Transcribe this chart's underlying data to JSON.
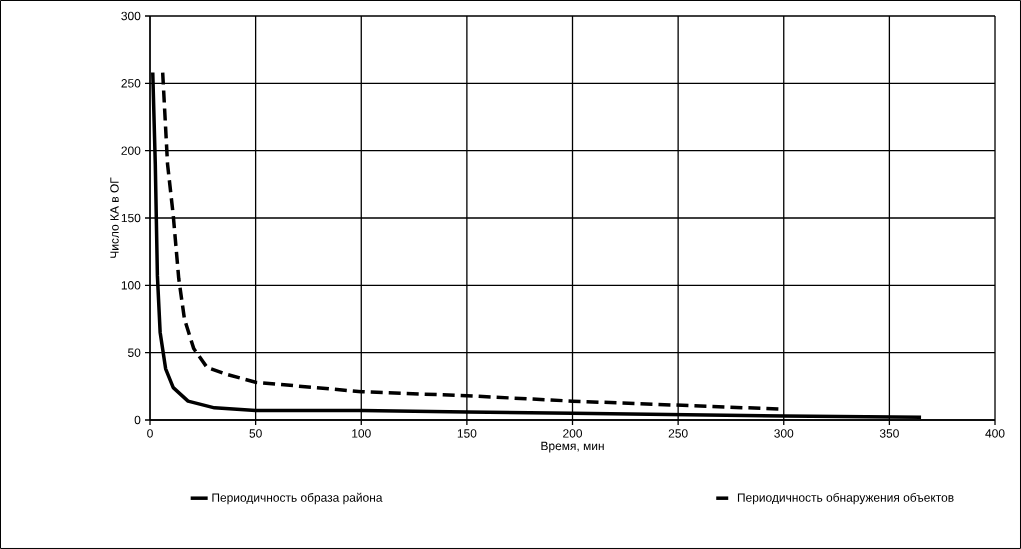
{
  "chart_data": {
    "type": "line",
    "xlabel": "Время, мин",
    "ylabel": "Число КА в ОГ",
    "xlim": [
      0,
      400
    ],
    "xticks": [
      0,
      50,
      100,
      150,
      200,
      250,
      300,
      350,
      400
    ],
    "ylim": [
      0,
      300
    ],
    "yticks": [
      0,
      50,
      100,
      150,
      200,
      250,
      300
    ],
    "grid": true,
    "legend": "bottom",
    "marker": "none",
    "series": [
      {
        "name": "Периодичность образа района",
        "color": "#000000",
        "line_style": "solid",
        "x": [
          1.3,
          2.5,
          3.5,
          4.8,
          7.4,
          11,
          18,
          30.5,
          50,
          100,
          150,
          200,
          250,
          300,
          365
        ],
        "values": [
          258,
          190,
          107,
          65,
          38,
          24,
          14,
          9,
          7,
          7,
          6,
          5,
          4,
          3,
          2
        ]
      },
      {
        "name": "Периодичность обнаружения объектов",
        "color": "#000000",
        "line_style": "dashed",
        "x": [
          6,
          8.3,
          11,
          13.6,
          16.3,
          20.7,
          27,
          36,
          50,
          100,
          150,
          200,
          250,
          300
        ],
        "values": [
          258,
          190,
          152,
          105,
          75,
          53,
          39,
          34,
          28,
          21,
          18,
          14,
          11,
          8
        ]
      }
    ]
  }
}
